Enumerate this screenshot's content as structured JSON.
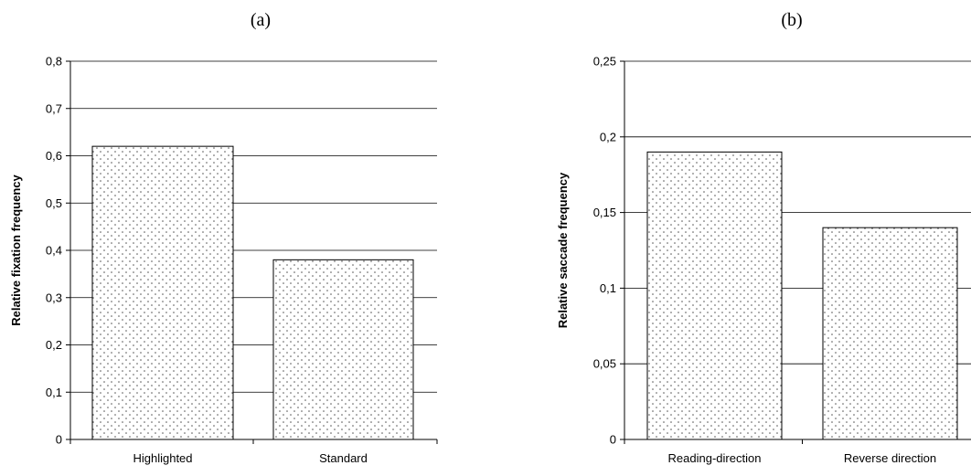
{
  "chart_data": [
    {
      "type": "bar",
      "panel_label": "(a)",
      "categories": [
        "Highlighted",
        "Standard"
      ],
      "values": [
        0.62,
        0.38
      ],
      "ylabel": "Relative fixation frequency",
      "ylim": [
        0,
        0.8
      ],
      "yticks": [
        0,
        0.1,
        0.2,
        0.3,
        0.4,
        0.5,
        0.6,
        0.7,
        0.8
      ],
      "ytick_labels": [
        "0",
        "0,1",
        "0,2",
        "0,3",
        "0,4",
        "0,5",
        "0,6",
        "0,7",
        "0,8"
      ],
      "grid": true,
      "legend": "none",
      "bar_fill": "dotted"
    },
    {
      "type": "bar",
      "panel_label": "(b)",
      "categories": [
        "Reading-direction",
        "Reverse direction"
      ],
      "values": [
        0.19,
        0.14
      ],
      "ylabel": "Relative saccade frequency",
      "ylim": [
        0,
        0.25
      ],
      "yticks": [
        0,
        0.05,
        0.1,
        0.15,
        0.2,
        0.25
      ],
      "ytick_labels": [
        "0",
        "0,05",
        "0,1",
        "0,15",
        "0,2",
        "0,25"
      ],
      "grid": true,
      "legend": "none",
      "bar_fill": "dotted"
    }
  ],
  "colors": {
    "bar_stroke": "#000000",
    "dot": "#555555",
    "grid": "#000000",
    "background": "#ffffff"
  }
}
